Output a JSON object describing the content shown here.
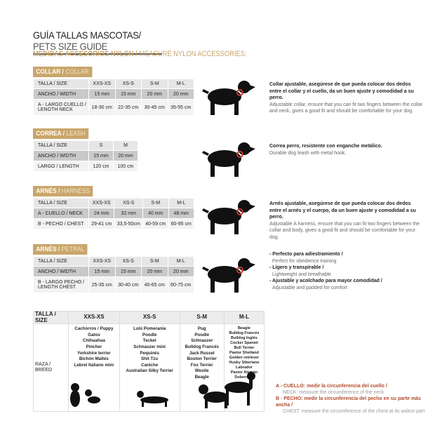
{
  "title": {
    "es": "GUÍA TALLAS MASCOTAS/",
    "en": " PETS SIZE GUIDE"
  },
  "subtitle": {
    "es": "MEDIDAS ACCESORIOS NYLON /",
    "en": " MEASURE NYLON ACCESSORIES:"
  },
  "colors": {
    "gold": "#c9a66b",
    "red": "#b34a2a"
  },
  "collar": {
    "label_es": "COLLAR /",
    "label_en": " COLLAR",
    "header": [
      "TALLA / SIZE",
      "XXS-XS",
      "XS-S",
      "S-M",
      "M-L"
    ],
    "rows": [
      [
        "ANCHO / WIDTH",
        "15 mm",
        "15 mm",
        "20 mm",
        "20 mm"
      ],
      [
        "A - LARGO CUELLO / LENGTH NECK",
        "18-30 cm",
        "22-35 cm",
        "30-45 cm",
        "35-55 cm"
      ]
    ],
    "desc_es": "Collar ajustable, asegúrese de que pueda colocar dos dedos entre el collar y el cuello, da un buen ajuste y comodidad a su perro.",
    "desc_en": "Adjustable collar, ensure that you can fit two fingers between the collar and neck, gives a good fit and should be comfortable for your dog."
  },
  "leash": {
    "label_es": "CORREA /",
    "label_en": " LEASH",
    "header": [
      "TALLA / SIZE",
      "S",
      "M"
    ],
    "rows": [
      [
        "ANCHO / WIDTH",
        "15 mm",
        "20 mm"
      ],
      [
        "LARGO / LENGTH",
        "120 cm",
        "100 cm"
      ]
    ],
    "desc_es": "Correa perro, resistente con enganche metálico.",
    "desc_en": "Durable dog leash with metal hook."
  },
  "harness": {
    "label_es": "ARNÉS /",
    "label_en": " HARNESS",
    "header": [
      "TALLA / SIZE",
      "XXS-XS",
      "XS-S",
      "S-M",
      "M-L"
    ],
    "rows": [
      [
        "A - CUELLO / NECK",
        "24 mm",
        "32 mm",
        "40 mm",
        "48 mm"
      ],
      [
        "B - PECHO / CHEST",
        "29-41 cm",
        "33,5-50cm",
        "40-59 cm",
        "60-95 cm"
      ]
    ],
    "desc_es": "Arnés ajustable, asegúrese de que pueda colocar dos dedos entre el arnés y el cuerpo, da un buen ajuste y comodidad a su perro.",
    "desc_en": "Adjustable A harness, ensure that you can fit two fingers between the collar and body, gives a good fit and should be comfortable for your dog."
  },
  "petral": {
    "label_es": "ARNÉS /",
    "label_en": " PETRAL",
    "header": [
      "TALLA / SIZE",
      "XXS-XS",
      "XS-S",
      "S-M",
      "M-L"
    ],
    "rows": [
      [
        "ANCHO / WIDTH",
        "15 mm",
        "15 mm",
        "20 mm",
        "20 mm"
      ],
      [
        "B - LARGO PECHO / LENGTH CHEST",
        "25-35 cm",
        "30-40 cm",
        "40-65 cm",
        "60-75 cm"
      ]
    ],
    "bullets": [
      {
        "es": "- Perfecto para adiestramiento /",
        "en": "Perfect for obedience training"
      },
      {
        "es": "- Ligero y transpirable /",
        "en": "Lightweight and breathable"
      },
      {
        "es": "- Ajustable y acolchado para mayor comodidad /",
        "en": "Adjustable and padded for comfort"
      }
    ]
  },
  "breeds": {
    "header": [
      "TALLA / SIZE",
      "XXS-XS",
      "XS-S",
      "S-M",
      "M-L"
    ],
    "row_label": "RAZA / BREED",
    "cols": [
      "Cachorros / Puppy\nGatos\nChihuahua\nPincher\nYorkshire terrier\nBichón Maltés\nLebrel Italiano mini",
      "Lulú Pomerania\nPoodle\nTeckel\nSchnauzer mini\nPequinés\nShit Tzu\nCaniche\nAustralian Silky Terrier",
      "Pug\nPoodle\nSchnauzer\nBulldog Francés\nJack Russel\nBoston Terrier\nFox Terrier\nWestie\nBeagle",
      "Beagle\nBulldog Francés\nBulldog Inglés\nCocker Spaniel\nBull Terrier\nPastor Shetland\nGolden retriever\nHusky Siberiano\nLabrador\nPastor Alemán\nDoberman"
    ]
  },
  "legend": [
    {
      "es": "A - CUELLO: medir la circunferencia del cuello /",
      "en": "NECK: measure the circumference of the neck"
    },
    {
      "es": "B - PECHO: medir la circunferencia del pecho en su parte más ancha /",
      "en": "CHEST: measure the circumference of the chest at its widest part"
    }
  ]
}
